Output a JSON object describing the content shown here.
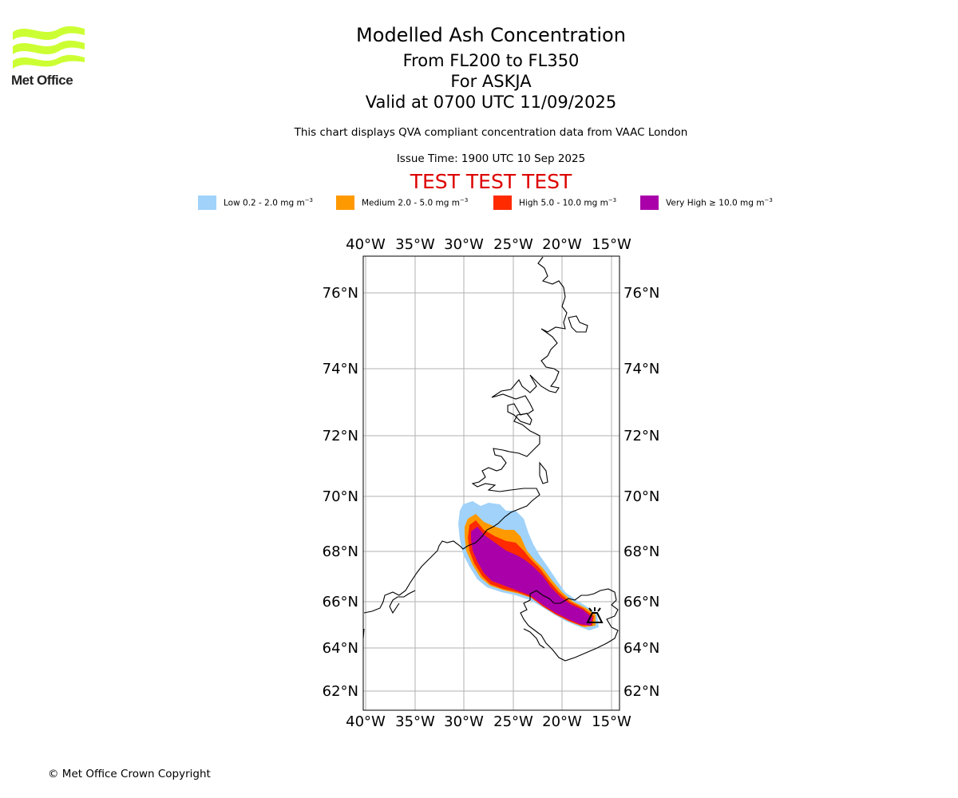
{
  "header": {
    "title": "Modelled Ash Concentration",
    "levels": "From FL200 to FL350",
    "volcano": "For ASKJA",
    "valid": "Valid at 0700 UTC 11/09/2025",
    "description": "This chart displays QVA compliant concentration data from VAAC London",
    "issue_time": "Issue Time: 1900 UTC 10 Sep 2025",
    "test_banner": "TEST TEST TEST"
  },
  "logo": {
    "text": "Met Office",
    "color": "#ccff33"
  },
  "legend": [
    {
      "label": "Low 0.2 - 2.0 mg m",
      "unit_exp": "−3",
      "color": "#a0d2fa"
    },
    {
      "label": "Medium 2.0 - 5.0 mg m",
      "unit_exp": "−3",
      "color": "#ff9900"
    },
    {
      "label": "High 5.0 - 10.0 mg m",
      "unit_exp": "−3",
      "color": "#ff2a00"
    },
    {
      "label": "Very High  ≥  10.0 mg m",
      "unit_exp": "−3",
      "color": "#aa00aa"
    }
  ],
  "map": {
    "lon_ticks": [
      "40°W",
      "35°W",
      "30°W",
      "25°W",
      "20°W",
      "15°W"
    ],
    "lat_ticks": [
      "76°N",
      "74°N",
      "72°N",
      "70°N",
      "68°N",
      "66°N",
      "64°N",
      "62°N"
    ],
    "volcano_marker": "volcano-icon"
  },
  "footer": {
    "copyright": "© Met Office Crown Copyright"
  }
}
